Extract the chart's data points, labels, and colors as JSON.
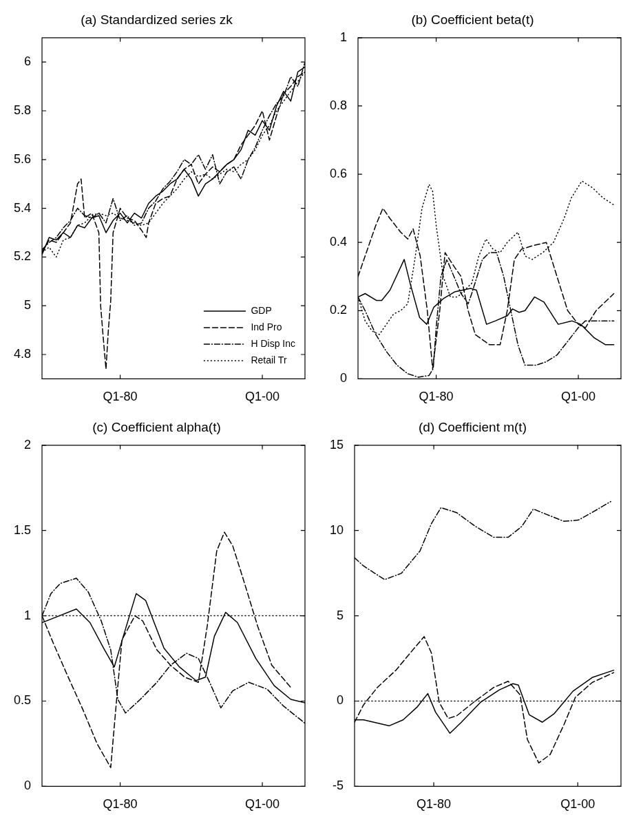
{
  "chart_data": [
    {
      "type": "line",
      "title": "(a) Standardized series zk",
      "xlim": [
        "1969-01",
        "2006-01"
      ],
      "xticks": [
        {
          "value": "1980-01",
          "label": "Q1-80"
        },
        {
          "value": "2000-01",
          "label": "Q1-00"
        }
      ],
      "ylim": [
        4.7,
        6.1
      ],
      "yticks": [
        4.8,
        5,
        5.2,
        5.4,
        5.6,
        5.8,
        6
      ],
      "legend": "bottom right",
      "series": [
        {
          "name": "GDP",
          "color": "#000000",
          "line_style": "solid",
          "x": [
            "1969-01",
            "1970-01",
            "1971-01",
            "1972-01",
            "1973-01",
            "1974-01",
            "1975-01",
            "1976-01",
            "1977-01",
            "1978-01",
            "1979-01",
            "1980-01",
            "1981-01",
            "1982-01",
            "1983-01",
            "1984-01",
            "1985-01",
            "1986-01",
            "1987-01",
            "1988-01",
            "1989-01",
            "1990-01",
            "1991-01",
            "1992-01",
            "1993-01",
            "1994-01",
            "1995-01",
            "1996-01",
            "1997-01",
            "1998-01",
            "1999-01",
            "2000-01",
            "2001-01",
            "2002-01",
            "2003-01",
            "2004-01",
            "2005-01",
            "2006-01"
          ],
          "values": [
            5.21,
            5.28,
            5.27,
            5.3,
            5.28,
            5.33,
            5.32,
            5.36,
            5.37,
            5.3,
            5.35,
            5.38,
            5.34,
            5.38,
            5.36,
            5.42,
            5.45,
            5.47,
            5.5,
            5.52,
            5.56,
            5.52,
            5.45,
            5.5,
            5.52,
            5.55,
            5.58,
            5.6,
            5.64,
            5.72,
            5.7,
            5.76,
            5.72,
            5.82,
            5.88,
            5.84,
            5.96,
            5.98
          ]
        },
        {
          "name": "Ind Pro",
          "color": "#000000",
          "line_style": "dashed",
          "x": [
            "1969-01",
            "1970-01",
            "1971-01",
            "1972-01",
            "1973-01",
            "1974-01",
            "1974-07",
            "1975-01",
            "1976-01",
            "1977-01",
            "1977-04",
            "1977-08",
            "1978-01",
            "1978-05",
            "1978-09",
            "1979-01",
            "1980-01",
            "1981-01",
            "1982-01",
            "1983-01",
            "1983-09",
            "1984-01",
            "1985-01",
            "1986-01",
            "1987-01",
            "1988-01",
            "1989-01",
            "1990-01",
            "1991-01",
            "1992-01",
            "1993-01",
            "1994-01",
            "1995-01",
            "1996-01",
            "1997-01",
            "1998-01",
            "1999-01",
            "2000-01",
            "2001-01",
            "2002-01",
            "2003-01",
            "2004-01",
            "2005-01",
            "2006-01"
          ],
          "values": [
            5.22,
            5.27,
            5.26,
            5.3,
            5.34,
            5.5,
            5.52,
            5.36,
            5.38,
            5.3,
            5.0,
            4.88,
            4.74,
            4.9,
            5.02,
            5.3,
            5.4,
            5.36,
            5.35,
            5.31,
            5.28,
            5.34,
            5.42,
            5.44,
            5.45,
            5.52,
            5.56,
            5.58,
            5.5,
            5.54,
            5.57,
            5.55,
            5.58,
            5.6,
            5.66,
            5.7,
            5.74,
            5.8,
            5.68,
            5.78,
            5.87,
            5.9,
            5.94,
            5.96
          ]
        },
        {
          "name": "H Disp Inc",
          "color": "#000000",
          "line_style": "dashdot",
          "x": [
            "1969-01",
            "1970-01",
            "1971-01",
            "1972-01",
            "1973-01",
            "1974-01",
            "1975-01",
            "1976-01",
            "1977-01",
            "1978-01",
            "1979-01",
            "1980-01",
            "1981-01",
            "1982-01",
            "1983-01",
            "1984-01",
            "1985-01",
            "1986-01",
            "1987-01",
            "1988-01",
            "1989-01",
            "1990-01",
            "1991-01",
            "1992-01",
            "1993-01",
            "1994-01",
            "1995-01",
            "1996-01",
            "1997-01",
            "1998-01",
            "1999-01",
            "2000-01",
            "2001-01",
            "2002-01",
            "2003-01",
            "2004-01",
            "2005-01",
            "2006-01"
          ],
          "values": [
            5.23,
            5.26,
            5.28,
            5.32,
            5.35,
            5.4,
            5.37,
            5.36,
            5.38,
            5.34,
            5.44,
            5.35,
            5.37,
            5.33,
            5.34,
            5.4,
            5.43,
            5.48,
            5.51,
            5.55,
            5.6,
            5.58,
            5.62,
            5.56,
            5.62,
            5.5,
            5.55,
            5.57,
            5.52,
            5.6,
            5.65,
            5.72,
            5.78,
            5.83,
            5.86,
            5.94,
            5.9,
            6.0
          ]
        },
        {
          "name": "Retail Tr",
          "color": "#000000",
          "line_style": "dotted",
          "x": [
            "1969-01",
            "1970-01",
            "1971-01",
            "1972-01",
            "1973-01",
            "1974-01",
            "1975-01",
            "1976-01",
            "1977-01",
            "1978-01",
            "1979-01",
            "1980-01",
            "1981-01",
            "1982-01",
            "1983-01",
            "1984-01",
            "1985-01",
            "1986-01",
            "1987-01",
            "1988-01",
            "1989-01",
            "1990-01",
            "1991-01",
            "1992-01",
            "1993-01",
            "1994-01",
            "1995-01",
            "1996-01",
            "1997-01",
            "1998-01",
            "1999-01",
            "2000-01",
            "2001-01",
            "2002-01",
            "2003-01",
            "2004-01",
            "2005-01",
            "2006-01"
          ],
          "values": [
            5.22,
            5.24,
            5.2,
            5.27,
            5.28,
            5.33,
            5.34,
            5.37,
            5.38,
            5.37,
            5.38,
            5.36,
            5.35,
            5.34,
            5.33,
            5.34,
            5.38,
            5.42,
            5.45,
            5.48,
            5.52,
            5.55,
            5.53,
            5.54,
            5.52,
            5.54,
            5.56,
            5.55,
            5.58,
            5.6,
            5.64,
            5.7,
            5.74,
            5.8,
            5.84,
            5.88,
            5.92,
            5.96
          ]
        }
      ]
    },
    {
      "type": "line",
      "title": "(b) Coefficient beta(t)",
      "xlim": [
        "1969-01",
        "2006-01"
      ],
      "xticks": [
        {
          "value": "1980-01",
          "label": "Q1-80"
        },
        {
          "value": "2000-01",
          "label": "Q1-00"
        }
      ],
      "ylim": [
        0,
        1
      ],
      "yticks": [
        0,
        0.2,
        0.4,
        0.6,
        0.8,
        1
      ],
      "series": [
        {
          "color": "#000000",
          "line_style": "solid",
          "x": [
            "1969-01",
            "1970-01",
            "1971-08",
            "1972-05",
            "1973-07",
            "1975-07",
            "1976-05",
            "1977-09",
            "1978-09",
            "1979-09",
            "1981-01",
            "1982-08",
            "1984-11",
            "1985-09",
            "1987-02",
            "1988-05",
            "1990-01",
            "1990-10",
            "1991-09",
            "1992-07",
            "1993-11",
            "1995-03",
            "1997-03",
            "1999-02",
            "2000-05",
            "2002-04",
            "2003-11",
            "2005-01"
          ],
          "values": [
            0.24,
            0.25,
            0.23,
            0.23,
            0.26,
            0.35,
            0.28,
            0.18,
            0.16,
            0.21,
            0.235,
            0.255,
            0.265,
            0.26,
            0.16,
            0.17,
            0.185,
            0.205,
            0.195,
            0.2,
            0.24,
            0.225,
            0.16,
            0.17,
            0.16,
            0.12,
            0.1,
            0.1
          ]
        },
        {
          "color": "#000000",
          "line_style": "dashed",
          "x": [
            "1969-01",
            "1970-01",
            "1971-07",
            "1972-07",
            "1973-07",
            "1975-01",
            "1976-01",
            "1976-10",
            "1977-10",
            "1978-10",
            "1979-07",
            "1980-07",
            "1981-04",
            "1982-07",
            "1983-07",
            "1984-07",
            "1985-07",
            "1987-07",
            "1989-01",
            "1990-01",
            "1991-01",
            "1992-01",
            "1993-07",
            "1995-07",
            "1997-01",
            "1998-07",
            "2000-01",
            "2001-01",
            "2002-07",
            "2005-01"
          ],
          "values": [
            0.3,
            0.36,
            0.45,
            0.5,
            0.47,
            0.43,
            0.41,
            0.44,
            0.36,
            0.2,
            0.03,
            0.2,
            0.37,
            0.33,
            0.3,
            0.2,
            0.13,
            0.1,
            0.1,
            0.2,
            0.35,
            0.38,
            0.39,
            0.4,
            0.3,
            0.2,
            0.16,
            0.15,
            0.2,
            0.25
          ]
        },
        {
          "color": "#000000",
          "line_style": "dashdot",
          "x": [
            "1969-01",
            "1970-01",
            "1971-07",
            "1973-01",
            "1974-07",
            "1976-01",
            "1977-07",
            "1979-01",
            "1979-08",
            "1980-01",
            "1980-09",
            "1981-07",
            "1982-07",
            "1983-07",
            "1984-07",
            "1985-01",
            "1986-07",
            "1987-07",
            "1988-07",
            "1989-07",
            "1990-07",
            "1991-07",
            "1992-07",
            "1994-01",
            "1995-07",
            "1997-01",
            "1998-07",
            "2000-01",
            "2001-01",
            "2003-01",
            "2005-01"
          ],
          "values": [
            0.24,
            0.2,
            0.13,
            0.08,
            0.04,
            0.015,
            0.005,
            0.01,
            0.03,
            0.15,
            0.3,
            0.35,
            0.3,
            0.25,
            0.22,
            0.25,
            0.35,
            0.37,
            0.37,
            0.3,
            0.2,
            0.1,
            0.04,
            0.04,
            0.05,
            0.07,
            0.11,
            0.15,
            0.17,
            0.17,
            0.17
          ]
        },
        {
          "color": "#000000",
          "line_style": "dotted",
          "x": [
            "1969-01",
            "1970-01",
            "1971-01",
            "1972-01",
            "1973-01",
            "1974-01",
            "1975-01",
            "1976-01",
            "1977-01",
            "1978-01",
            "1979-01",
            "1979-07",
            "1980-01",
            "1981-01",
            "1982-01",
            "1983-01",
            "1984-01",
            "1985-01",
            "1986-01",
            "1987-01",
            "1988-01",
            "1989-01",
            "1990-01",
            "1991-07",
            "1992-07",
            "1993-07",
            "1995-01",
            "1996-07",
            "1998-01",
            "1999-01",
            "2000-07",
            "2002-01",
            "2003-07",
            "2005-01"
          ],
          "values": [
            0.24,
            0.17,
            0.14,
            0.13,
            0.16,
            0.19,
            0.2,
            0.22,
            0.35,
            0.5,
            0.57,
            0.55,
            0.45,
            0.3,
            0.24,
            0.24,
            0.26,
            0.28,
            0.36,
            0.41,
            0.38,
            0.37,
            0.4,
            0.43,
            0.36,
            0.35,
            0.37,
            0.4,
            0.47,
            0.53,
            0.58,
            0.56,
            0.53,
            0.51
          ]
        }
      ]
    },
    {
      "type": "line",
      "title": "(c) Coefficient alpha(t)",
      "xlim": [
        "1969-01",
        "2006-01"
      ],
      "xticks": [
        {
          "value": "1980-01",
          "label": "Q1-80"
        },
        {
          "value": "2000-01",
          "label": "Q1-00"
        }
      ],
      "ylim": [
        0,
        2
      ],
      "yticks": [
        0,
        0.5,
        1,
        1.5,
        2
      ],
      "series": [
        {
          "color": "#000000",
          "line_style": "solid",
          "x": [
            "1969-01",
            "1970-11",
            "1973-11",
            "1975-10",
            "1977-09",
            "1979-03",
            "1980-08",
            "1982-04",
            "1983-08",
            "1986-03",
            "1988-05",
            "1990-09",
            "1992-01",
            "1993-04",
            "1994-11",
            "1996-07",
            "1999-02",
            "2001-09",
            "2004-01",
            "2006-01"
          ],
          "values": [
            0.96,
            0.99,
            1.04,
            0.96,
            0.81,
            0.7,
            0.9,
            1.13,
            1.09,
            0.81,
            0.7,
            0.62,
            0.64,
            0.88,
            1.02,
            0.96,
            0.75,
            0.59,
            0.51,
            0.49
          ]
        },
        {
          "color": "#000000",
          "line_style": "dashed",
          "x": [
            "1969-01",
            "1970-08",
            "1972-08",
            "1974-10",
            "1976-10",
            "1978-09",
            "1979-07",
            "1980-04",
            "1982-02",
            "1983-03",
            "1985-03",
            "1987-02",
            "1989-02",
            "1991-01",
            "1992-04",
            "1993-08",
            "1994-09",
            "1995-11",
            "1997-07",
            "1999-05",
            "2001-05",
            "2004-01"
          ],
          "values": [
            1.0,
            0.84,
            0.65,
            0.45,
            0.25,
            0.11,
            0.51,
            0.86,
            1.0,
            0.97,
            0.8,
            0.71,
            0.64,
            0.61,
            0.94,
            1.38,
            1.49,
            1.41,
            1.19,
            0.94,
            0.71,
            0.58
          ]
        },
        {
          "color": "#000000",
          "line_style": "dashdot",
          "x": [
            "1969-01",
            "1970-04",
            "1971-08",
            "1973-11",
            "1975-07",
            "1977-05",
            "1978-09",
            "1979-09",
            "1980-10",
            "1982-11",
            "1985-03",
            "1987-02",
            "1989-05",
            "1991-01",
            "1992-08",
            "1994-03",
            "1995-11",
            "1998-02",
            "2000-09",
            "2003-01",
            "2006-01"
          ],
          "values": [
            1.0,
            1.13,
            1.19,
            1.22,
            1.14,
            0.97,
            0.8,
            0.51,
            0.43,
            0.51,
            0.61,
            0.71,
            0.78,
            0.75,
            0.61,
            0.46,
            0.56,
            0.61,
            0.57,
            0.47,
            0.37
          ]
        },
        {
          "color": "#000000",
          "line_style": "dotted",
          "x": [
            "1969-01",
            "2006-01"
          ],
          "values": [
            1,
            1
          ]
        }
      ]
    },
    {
      "type": "line",
      "title": "(d) Coefficient m(t)",
      "xlim": [
        "1969-01",
        "2006-01"
      ],
      "xticks": [
        {
          "value": "1980-01",
          "label": "Q1-80"
        },
        {
          "value": "2000-01",
          "label": "Q1-00"
        }
      ],
      "ylim": [
        -5,
        15
      ],
      "yticks": [
        -5,
        0,
        5,
        10,
        15
      ],
      "series": [
        {
          "color": "#000000",
          "line_style": "solid",
          "x": [
            "1969-01",
            "1970-04",
            "1973-11",
            "1975-10",
            "1977-09",
            "1979-03",
            "1980-04",
            "1982-04",
            "1983-11",
            "1986-07",
            "1989-02",
            "1991-01",
            "1991-10",
            "1993-04",
            "1995-02",
            "1996-10",
            "1999-05",
            "2002-01",
            "2005-01"
          ],
          "values": [
            -1.1,
            -1.1,
            -1.45,
            -1.1,
            -0.36,
            0.44,
            -0.65,
            -1.89,
            -1.24,
            -0.07,
            0.65,
            1.02,
            0.94,
            -0.8,
            -1.24,
            -0.73,
            0.58,
            1.38,
            1.81
          ]
        },
        {
          "color": "#000000",
          "line_style": "dashed",
          "x": [
            "1969-01",
            "1970-04",
            "1972-03",
            "1974-10",
            "1976-10",
            "1978-09",
            "1979-09",
            "1980-03",
            "1980-10",
            "1982-01",
            "1983-03",
            "1985-10",
            "1988-05",
            "1990-05",
            "1992-01",
            "1993-01",
            "1994-08",
            "1996-03",
            "1998-02",
            "1999-09",
            "2002-01",
            "2005-01"
          ],
          "values": [
            -1.24,
            -0.22,
            0.8,
            1.81,
            2.83,
            3.78,
            2.83,
            1.52,
            -0.07,
            -1.02,
            -0.87,
            0,
            0.8,
            1.16,
            0.36,
            -2.25,
            -3.63,
            -3.13,
            -1.38,
            0.22,
            1.09,
            1.67
          ]
        },
        {
          "color": "#000000",
          "line_style": "dashdot",
          "x": [
            "1969-01",
            "1970-04",
            "1973-03",
            "1975-07",
            "1978-02",
            "1979-09",
            "1981-01",
            "1983-03",
            "1985-10",
            "1988-05",
            "1990-05",
            "1992-04",
            "1993-11",
            "1995-07",
            "1998-02",
            "2000-02",
            "2002-04",
            "2004-08"
          ],
          "values": [
            8.4,
            7.92,
            7.12,
            7.49,
            8.8,
            10.4,
            11.34,
            11.05,
            10.25,
            9.6,
            9.6,
            10.25,
            11.26,
            10.97,
            10.54,
            10.61,
            11.12,
            11.7
          ]
        },
        {
          "color": "#000000",
          "line_style": "dotted",
          "x": [
            "1969-01",
            "2006-01"
          ],
          "values": [
            0,
            0
          ]
        }
      ]
    }
  ]
}
